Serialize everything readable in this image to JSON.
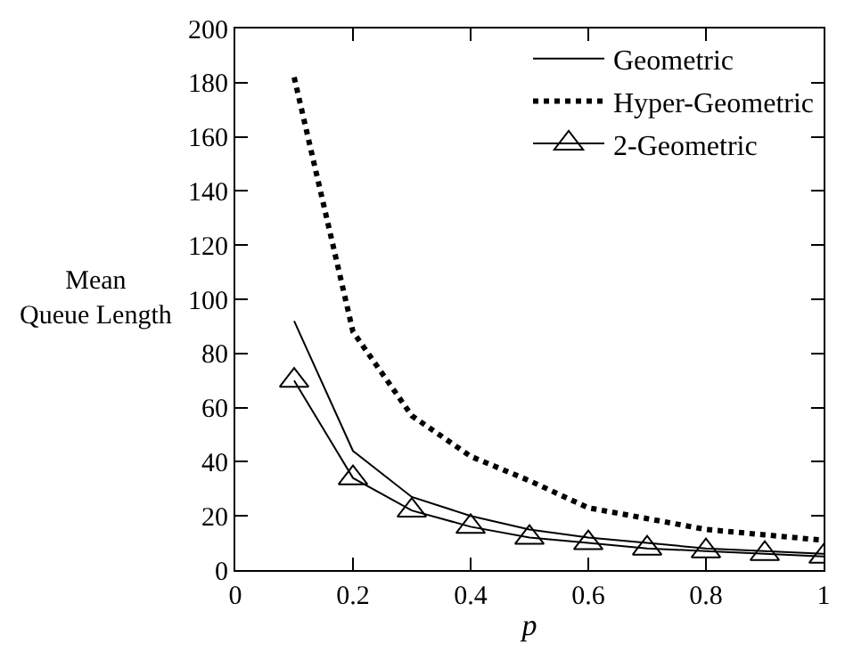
{
  "chart_data": {
    "type": "line",
    "xlabel": "p",
    "ylabel": "Mean\nQueue Length",
    "x": [
      0.1,
      0.2,
      0.3,
      0.4,
      0.5,
      0.6,
      0.7,
      0.8,
      0.9,
      1.0
    ],
    "series": [
      {
        "name": "Geometric",
        "color": "#000000",
        "line_style": "solid",
        "marker": "none",
        "values": [
          92,
          44,
          27,
          20,
          15,
          12,
          10,
          8,
          7,
          6
        ]
      },
      {
        "name": "Hyper-Geometric",
        "color": "#000000",
        "line_style": "dotted",
        "marker": "none",
        "values": [
          182,
          88,
          57,
          42,
          33,
          23,
          19,
          15,
          13,
          11
        ]
      },
      {
        "name": "2-Geometric",
        "color": "#000000",
        "line_style": "solid",
        "marker": "triangle",
        "values": [
          70,
          34,
          22,
          16,
          12,
          10,
          8,
          7,
          6,
          5
        ]
      }
    ],
    "xlim": [
      0,
      1
    ],
    "xticks": [
      0,
      0.2,
      0.4,
      0.6,
      0.8,
      1
    ],
    "ylim": [
      0,
      200
    ],
    "yticks": [
      0,
      20,
      40,
      60,
      80,
      100,
      120,
      140,
      160,
      180,
      200
    ],
    "grid": false,
    "legend": "top right"
  }
}
